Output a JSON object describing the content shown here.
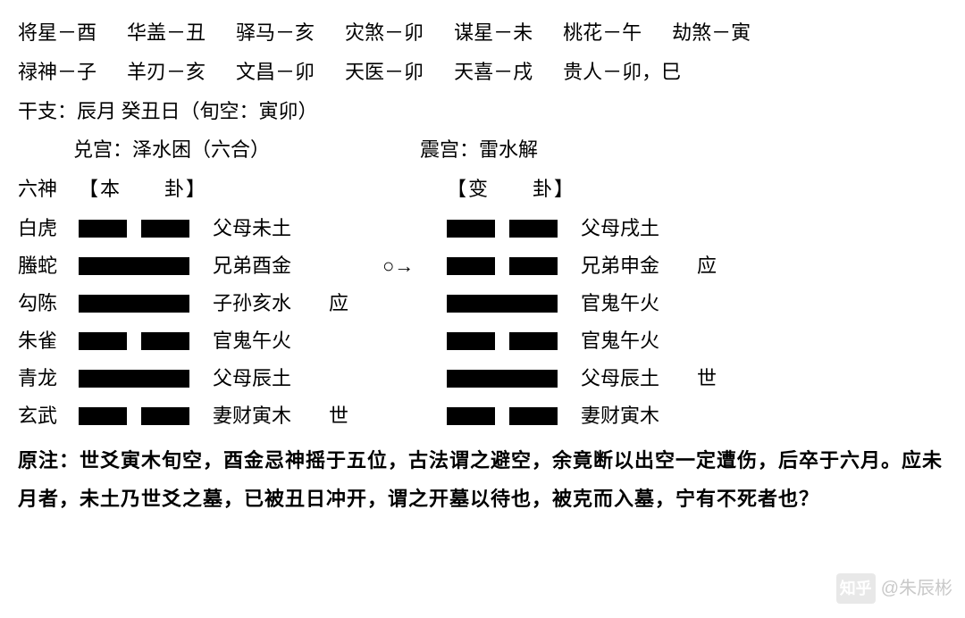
{
  "stars": {
    "row1": [
      "将星－酉",
      "华盖－丑",
      "驿马－亥",
      "灾煞－卯",
      "谋星－未",
      "桃花－午",
      "劫煞－寅"
    ],
    "row2": [
      "禄神－子",
      "羊刃－亥",
      "文昌－卯",
      "天医－卯",
      "天喜－戌",
      "贵人－卯，巳"
    ]
  },
  "ganzhi": "干支：辰月  癸丑日（旬空：寅卯）",
  "palace": {
    "a": "兑宫：泽水困（六合）",
    "b": "震宫：雷水解"
  },
  "header": {
    "god": "六神",
    "main": "【本　　卦】",
    "bian": "【变　　卦】"
  },
  "rows": [
    {
      "god": "白虎",
      "line": "yin",
      "rel": "父母未土",
      "mark": "",
      "arrow": "",
      "line2": "yin",
      "rel2": "父母戌土",
      "mark2": ""
    },
    {
      "god": "螣蛇",
      "line": "yang",
      "rel": "兄弟酉金",
      "mark": "",
      "arrow": "○→",
      "line2": "yin",
      "rel2": "兄弟申金",
      "mark2": "应"
    },
    {
      "god": "勾陈",
      "line": "yang",
      "rel": "子孙亥水",
      "mark": "应",
      "arrow": "",
      "line2": "yang",
      "rel2": "官鬼午火",
      "mark2": ""
    },
    {
      "god": "朱雀",
      "line": "yin",
      "rel": "官鬼午火",
      "mark": "",
      "arrow": "",
      "line2": "yin",
      "rel2": "官鬼午火",
      "mark2": ""
    },
    {
      "god": "青龙",
      "line": "yang",
      "rel": "父母辰土",
      "mark": "",
      "arrow": "",
      "line2": "yang",
      "rel2": "父母辰土",
      "mark2": "世"
    },
    {
      "god": "玄武",
      "line": "yin",
      "rel": "妻财寅木",
      "mark": "世",
      "arrow": "",
      "line2": "yin",
      "rel2": "妻财寅木",
      "mark2": ""
    }
  ],
  "note": "原注：世爻寅木旬空，酉金忌神摇于五位，古法谓之避空，余竟断以出空一定遭伤，后卒于六月。应未月者，未土乃世爻之墓，已被丑日冲开，谓之开墓以待也，被克而入墓，宁有不死者也？",
  "watermark": "@朱辰彬",
  "colors": {
    "fg": "#000000",
    "bg": "#ffffff",
    "wm": "#c9c9c9"
  }
}
